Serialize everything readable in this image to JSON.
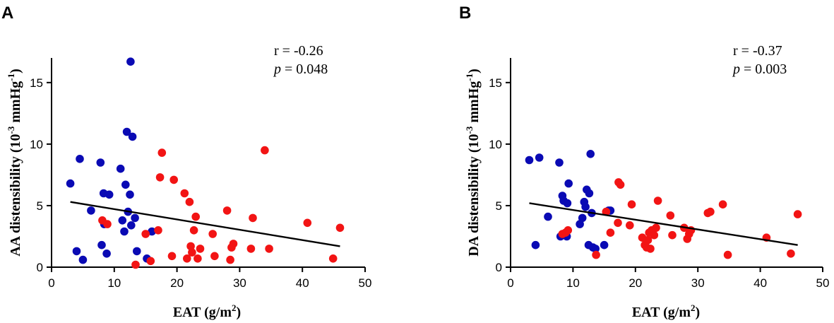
{
  "chart_data": [
    {
      "type": "scatter",
      "panel_label": "A",
      "xlabel": "EAT (g/m²)",
      "xlabel_base": "EAT (g/m",
      "xlabel_sup": "2",
      "xlabel_end": ")",
      "ylabel": "AA distensibility (10⁻³ mmHg⁻¹)",
      "ylabel_base": "AA distensibility (10",
      "ylabel_sup1": "-3",
      "ylabel_mid": " mmHg",
      "ylabel_sup2": "-1",
      "ylabel_end": ")",
      "xlim": [
        0,
        50
      ],
      "ylim": [
        0,
        17
      ],
      "xticks": [
        0,
        10,
        20,
        30,
        40,
        50
      ],
      "yticks": [
        0,
        5,
        10,
        15
      ],
      "stat_r": "r = -0.26",
      "stat_p_symbol": "p",
      "stat_p_value": " = 0.048",
      "colors": {
        "blue": "#0A0AB4",
        "red": "#F21414"
      },
      "fit_line": {
        "x": [
          3,
          46
        ],
        "y": [
          5.3,
          1.7
        ]
      },
      "series": [
        {
          "name": "blue",
          "x": [
            3.0,
            4.0,
            4.5,
            5.0,
            6.3,
            7.8,
            8.0,
            8.3,
            8.4,
            8.8,
            9.2,
            11.0,
            11.3,
            11.6,
            11.8,
            12.0,
            12.2,
            12.5,
            12.6,
            12.7,
            12.9,
            13.3,
            13.6,
            15.2,
            16.0
          ],
          "y": [
            6.8,
            1.3,
            8.8,
            0.6,
            4.6,
            8.5,
            1.8,
            6.0,
            3.5,
            1.1,
            5.9,
            8.0,
            3.8,
            2.9,
            6.7,
            11.0,
            4.5,
            5.9,
            16.7,
            3.4,
            10.6,
            4.0,
            1.3,
            0.7,
            2.9
          ]
        },
        {
          "name": "red",
          "x": [
            8.1,
            8.9,
            13.4,
            15.0,
            15.8,
            17.0,
            17.3,
            17.6,
            19.2,
            19.5,
            21.2,
            21.6,
            22.0,
            22.2,
            22.4,
            22.7,
            23.0,
            23.3,
            23.7,
            25.7,
            26.0,
            28.0,
            28.5,
            28.7,
            29.0,
            31.8,
            32.1,
            34.0,
            34.7,
            40.8,
            44.9,
            46.0
          ],
          "y": [
            3.8,
            3.5,
            0.2,
            2.7,
            0.5,
            3.0,
            7.3,
            9.3,
            0.9,
            7.1,
            6.0,
            0.7,
            5.3,
            1.7,
            1.2,
            3.0,
            4.1,
            0.7,
            1.5,
            2.7,
            0.9,
            4.6,
            0.6,
            1.6,
            1.9,
            1.5,
            4.0,
            9.5,
            1.5,
            3.6,
            0.7,
            3.2
          ]
        }
      ]
    },
    {
      "type": "scatter",
      "panel_label": "B",
      "xlabel": "EAT (g/m²)",
      "xlabel_base": "EAT (g/m",
      "xlabel_sup": "2",
      "xlabel_end": ")",
      "ylabel": "DA distensibility (10⁻³ mmHg⁻¹)",
      "ylabel_base": "DA distensibility (10",
      "ylabel_sup1": "-3",
      "ylabel_mid": " mmHg",
      "ylabel_sup2": "-1",
      "ylabel_end": ")",
      "xlim": [
        0,
        50
      ],
      "ylim": [
        0,
        17
      ],
      "xticks": [
        0,
        10,
        20,
        30,
        40,
        50
      ],
      "yticks": [
        0,
        5,
        10,
        15
      ],
      "stat_r": "r = -0.37",
      "stat_p_symbol": "p",
      "stat_p_value": " = 0.003",
      "colors": {
        "blue": "#0A0AB4",
        "red": "#F21414"
      },
      "fit_line": {
        "x": [
          3,
          46
        ],
        "y": [
          5.2,
          1.8
        ]
      },
      "series": [
        {
          "name": "blue",
          "x": [
            3.0,
            4.0,
            4.6,
            6.0,
            7.8,
            8.0,
            8.3,
            8.5,
            9.0,
            9.1,
            9.3,
            11.1,
            11.5,
            11.8,
            12.0,
            12.2,
            12.5,
            12.6,
            12.8,
            13.0,
            13.2,
            13.6,
            15.0,
            15.7,
            16.0
          ],
          "y": [
            8.7,
            1.8,
            8.9,
            4.1,
            8.5,
            2.5,
            5.8,
            5.4,
            2.5,
            5.2,
            6.8,
            3.5,
            4.0,
            5.3,
            4.9,
            6.3,
            1.8,
            6.0,
            9.2,
            4.4,
            1.6,
            1.5,
            1.8,
            4.6,
            4.6
          ]
        },
        {
          "name": "red",
          "x": [
            8.3,
            8.8,
            9.2,
            13.7,
            15.3,
            16.0,
            17.2,
            17.3,
            17.6,
            19.1,
            19.4,
            21.1,
            21.5,
            21.8,
            22.0,
            22.2,
            22.4,
            22.6,
            23.0,
            23.3,
            23.6,
            25.6,
            25.9,
            27.8,
            28.3,
            28.6,
            28.9,
            31.6,
            32.0,
            34.0,
            34.8,
            41.0,
            44.9,
            46.0
          ],
          "y": [
            2.7,
            2.8,
            3.0,
            1.0,
            4.5,
            2.8,
            3.6,
            6.9,
            6.7,
            3.4,
            5.1,
            2.4,
            1.8,
            1.6,
            2.2,
            2.8,
            1.5,
            3.0,
            2.6,
            3.2,
            5.4,
            4.2,
            2.6,
            3.2,
            2.3,
            2.7,
            3.0,
            4.4,
            4.5,
            5.1,
            1.0,
            2.4,
            1.1,
            4.3
          ]
        }
      ]
    }
  ]
}
